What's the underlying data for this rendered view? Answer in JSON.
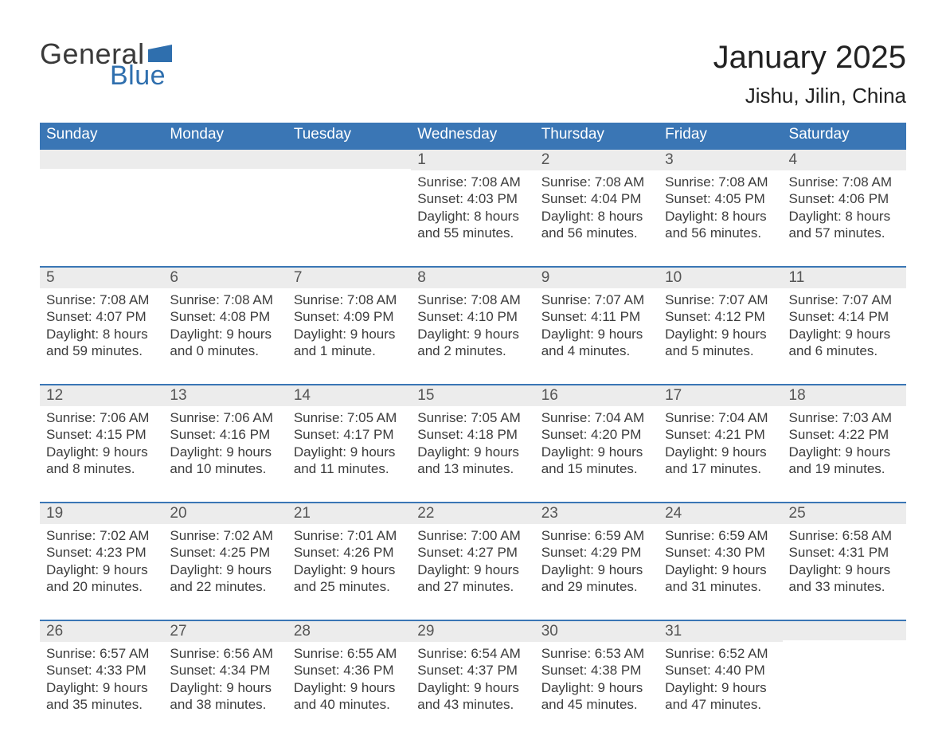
{
  "logo": {
    "text_general": "General",
    "text_blue": "Blue",
    "flag_color": "#2f6fae",
    "text_general_color": "#3a3a3a"
  },
  "header": {
    "month_title": "January 2025",
    "location": "Jishu, Jilin, China"
  },
  "colors": {
    "header_bg": "#3a76b5",
    "header_text": "#ffffff",
    "row_divider": "#3a76b5",
    "daynum_bg": "#ececec",
    "daynum_text": "#555555",
    "body_text": "#3c3c3c",
    "background": "#ffffff"
  },
  "weekdays": [
    "Sunday",
    "Monday",
    "Tuesday",
    "Wednesday",
    "Thursday",
    "Friday",
    "Saturday"
  ],
  "weeks": [
    [
      {
        "day": "",
        "sunrise": "",
        "sunset": "",
        "daylight1": "",
        "daylight2": ""
      },
      {
        "day": "",
        "sunrise": "",
        "sunset": "",
        "daylight1": "",
        "daylight2": ""
      },
      {
        "day": "",
        "sunrise": "",
        "sunset": "",
        "daylight1": "",
        "daylight2": ""
      },
      {
        "day": "1",
        "sunrise": "Sunrise: 7:08 AM",
        "sunset": "Sunset: 4:03 PM",
        "daylight1": "Daylight: 8 hours",
        "daylight2": "and 55 minutes."
      },
      {
        "day": "2",
        "sunrise": "Sunrise: 7:08 AM",
        "sunset": "Sunset: 4:04 PM",
        "daylight1": "Daylight: 8 hours",
        "daylight2": "and 56 minutes."
      },
      {
        "day": "3",
        "sunrise": "Sunrise: 7:08 AM",
        "sunset": "Sunset: 4:05 PM",
        "daylight1": "Daylight: 8 hours",
        "daylight2": "and 56 minutes."
      },
      {
        "day": "4",
        "sunrise": "Sunrise: 7:08 AM",
        "sunset": "Sunset: 4:06 PM",
        "daylight1": "Daylight: 8 hours",
        "daylight2": "and 57 minutes."
      }
    ],
    [
      {
        "day": "5",
        "sunrise": "Sunrise: 7:08 AM",
        "sunset": "Sunset: 4:07 PM",
        "daylight1": "Daylight: 8 hours",
        "daylight2": "and 59 minutes."
      },
      {
        "day": "6",
        "sunrise": "Sunrise: 7:08 AM",
        "sunset": "Sunset: 4:08 PM",
        "daylight1": "Daylight: 9 hours",
        "daylight2": "and 0 minutes."
      },
      {
        "day": "7",
        "sunrise": "Sunrise: 7:08 AM",
        "sunset": "Sunset: 4:09 PM",
        "daylight1": "Daylight: 9 hours",
        "daylight2": "and 1 minute."
      },
      {
        "day": "8",
        "sunrise": "Sunrise: 7:08 AM",
        "sunset": "Sunset: 4:10 PM",
        "daylight1": "Daylight: 9 hours",
        "daylight2": "and 2 minutes."
      },
      {
        "day": "9",
        "sunrise": "Sunrise: 7:07 AM",
        "sunset": "Sunset: 4:11 PM",
        "daylight1": "Daylight: 9 hours",
        "daylight2": "and 4 minutes."
      },
      {
        "day": "10",
        "sunrise": "Sunrise: 7:07 AM",
        "sunset": "Sunset: 4:12 PM",
        "daylight1": "Daylight: 9 hours",
        "daylight2": "and 5 minutes."
      },
      {
        "day": "11",
        "sunrise": "Sunrise: 7:07 AM",
        "sunset": "Sunset: 4:14 PM",
        "daylight1": "Daylight: 9 hours",
        "daylight2": "and 6 minutes."
      }
    ],
    [
      {
        "day": "12",
        "sunrise": "Sunrise: 7:06 AM",
        "sunset": "Sunset: 4:15 PM",
        "daylight1": "Daylight: 9 hours",
        "daylight2": "and 8 minutes."
      },
      {
        "day": "13",
        "sunrise": "Sunrise: 7:06 AM",
        "sunset": "Sunset: 4:16 PM",
        "daylight1": "Daylight: 9 hours",
        "daylight2": "and 10 minutes."
      },
      {
        "day": "14",
        "sunrise": "Sunrise: 7:05 AM",
        "sunset": "Sunset: 4:17 PM",
        "daylight1": "Daylight: 9 hours",
        "daylight2": "and 11 minutes."
      },
      {
        "day": "15",
        "sunrise": "Sunrise: 7:05 AM",
        "sunset": "Sunset: 4:18 PM",
        "daylight1": "Daylight: 9 hours",
        "daylight2": "and 13 minutes."
      },
      {
        "day": "16",
        "sunrise": "Sunrise: 7:04 AM",
        "sunset": "Sunset: 4:20 PM",
        "daylight1": "Daylight: 9 hours",
        "daylight2": "and 15 minutes."
      },
      {
        "day": "17",
        "sunrise": "Sunrise: 7:04 AM",
        "sunset": "Sunset: 4:21 PM",
        "daylight1": "Daylight: 9 hours",
        "daylight2": "and 17 minutes."
      },
      {
        "day": "18",
        "sunrise": "Sunrise: 7:03 AM",
        "sunset": "Sunset: 4:22 PM",
        "daylight1": "Daylight: 9 hours",
        "daylight2": "and 19 minutes."
      }
    ],
    [
      {
        "day": "19",
        "sunrise": "Sunrise: 7:02 AM",
        "sunset": "Sunset: 4:23 PM",
        "daylight1": "Daylight: 9 hours",
        "daylight2": "and 20 minutes."
      },
      {
        "day": "20",
        "sunrise": "Sunrise: 7:02 AM",
        "sunset": "Sunset: 4:25 PM",
        "daylight1": "Daylight: 9 hours",
        "daylight2": "and 22 minutes."
      },
      {
        "day": "21",
        "sunrise": "Sunrise: 7:01 AM",
        "sunset": "Sunset: 4:26 PM",
        "daylight1": "Daylight: 9 hours",
        "daylight2": "and 25 minutes."
      },
      {
        "day": "22",
        "sunrise": "Sunrise: 7:00 AM",
        "sunset": "Sunset: 4:27 PM",
        "daylight1": "Daylight: 9 hours",
        "daylight2": "and 27 minutes."
      },
      {
        "day": "23",
        "sunrise": "Sunrise: 6:59 AM",
        "sunset": "Sunset: 4:29 PM",
        "daylight1": "Daylight: 9 hours",
        "daylight2": "and 29 minutes."
      },
      {
        "day": "24",
        "sunrise": "Sunrise: 6:59 AM",
        "sunset": "Sunset: 4:30 PM",
        "daylight1": "Daylight: 9 hours",
        "daylight2": "and 31 minutes."
      },
      {
        "day": "25",
        "sunrise": "Sunrise: 6:58 AM",
        "sunset": "Sunset: 4:31 PM",
        "daylight1": "Daylight: 9 hours",
        "daylight2": "and 33 minutes."
      }
    ],
    [
      {
        "day": "26",
        "sunrise": "Sunrise: 6:57 AM",
        "sunset": "Sunset: 4:33 PM",
        "daylight1": "Daylight: 9 hours",
        "daylight2": "and 35 minutes."
      },
      {
        "day": "27",
        "sunrise": "Sunrise: 6:56 AM",
        "sunset": "Sunset: 4:34 PM",
        "daylight1": "Daylight: 9 hours",
        "daylight2": "and 38 minutes."
      },
      {
        "day": "28",
        "sunrise": "Sunrise: 6:55 AM",
        "sunset": "Sunset: 4:36 PM",
        "daylight1": "Daylight: 9 hours",
        "daylight2": "and 40 minutes."
      },
      {
        "day": "29",
        "sunrise": "Sunrise: 6:54 AM",
        "sunset": "Sunset: 4:37 PM",
        "daylight1": "Daylight: 9 hours",
        "daylight2": "and 43 minutes."
      },
      {
        "day": "30",
        "sunrise": "Sunrise: 6:53 AM",
        "sunset": "Sunset: 4:38 PM",
        "daylight1": "Daylight: 9 hours",
        "daylight2": "and 45 minutes."
      },
      {
        "day": "31",
        "sunrise": "Sunrise: 6:52 AM",
        "sunset": "Sunset: 4:40 PM",
        "daylight1": "Daylight: 9 hours",
        "daylight2": "and 47 minutes."
      },
      {
        "day": "",
        "sunrise": "",
        "sunset": "",
        "daylight1": "",
        "daylight2": ""
      }
    ]
  ]
}
